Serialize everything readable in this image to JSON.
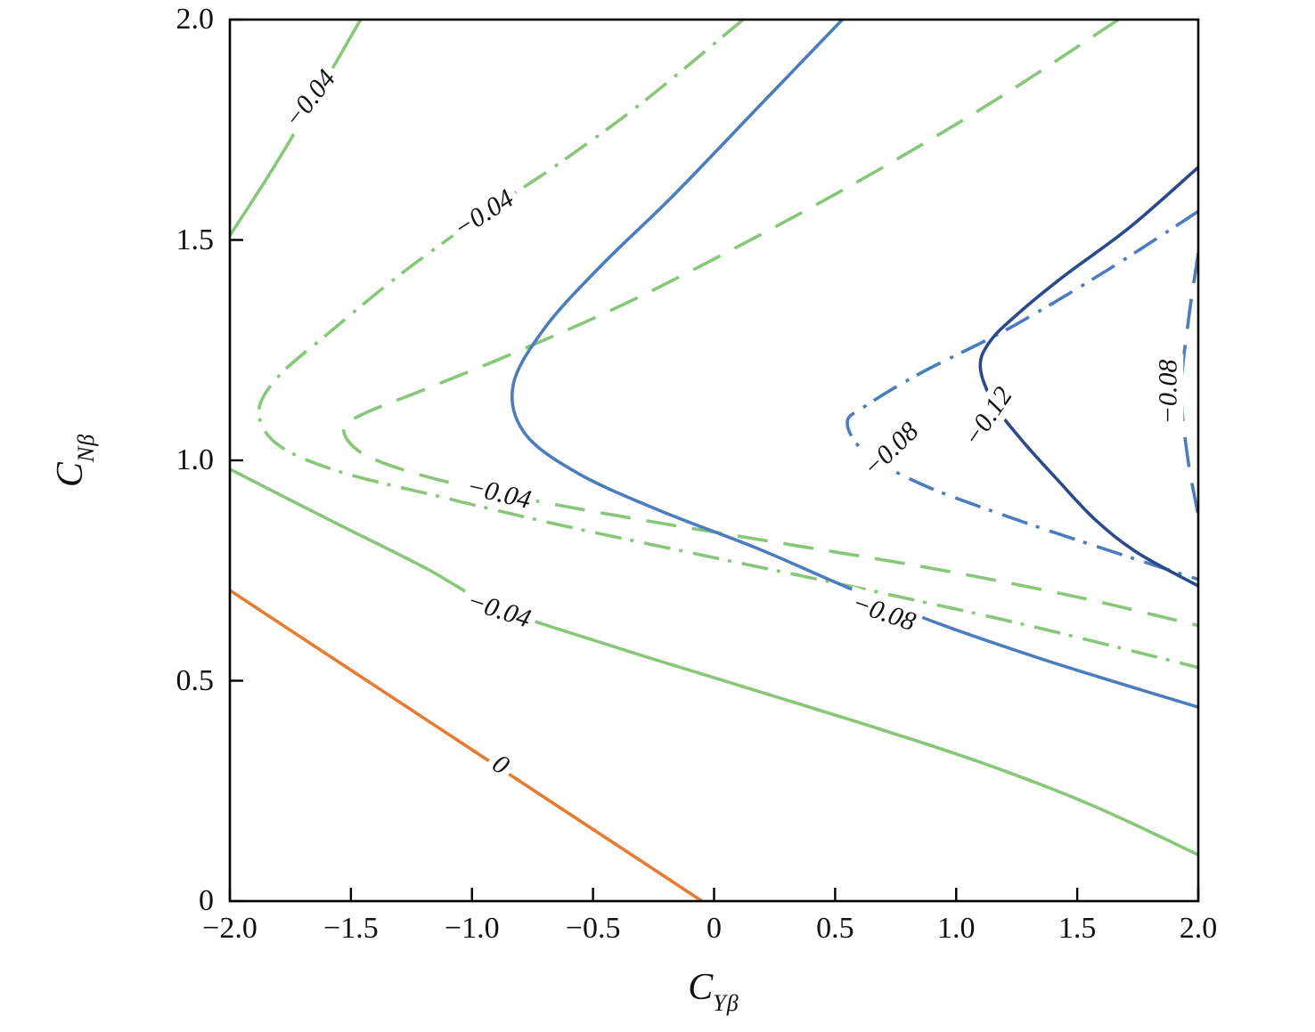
{
  "figure": {
    "background": "#ffffff"
  },
  "axes": {
    "x": {
      "title_main": "C",
      "title_sub": "Yβ",
      "min": -2.0,
      "max": 2.0,
      "ticks": [
        -2.0,
        -1.5,
        -1.0,
        -0.5,
        0,
        0.5,
        1.0,
        1.5,
        2.0
      ],
      "tick_labels": [
        "−2.0",
        "−1.5",
        "−1.0",
        "−0.5",
        "0",
        "0.5",
        "1.0",
        "1.5",
        "2.0"
      ]
    },
    "y": {
      "title_main": "C",
      "title_sub": "Nβ",
      "min": 0,
      "max": 2.0,
      "ticks": [
        0,
        0.5,
        1.0,
        1.5,
        2.0
      ],
      "tick_labels": [
        "0",
        "0.5",
        "1.0",
        "1.5",
        "2.0"
      ]
    }
  },
  "chart_data": {
    "type": "contour",
    "xlabel": "C_Yβ",
    "ylabel": "C_Nβ",
    "xlim": [
      -2.0,
      2.0
    ],
    "ylim": [
      0,
      2.0
    ],
    "grid": false,
    "legend": null,
    "levels": [
      0,
      -0.04,
      -0.08,
      -0.12
    ],
    "level_colors": [
      "#e87b2e",
      "#86c878",
      "#4a7dbf",
      "#2a4a8c"
    ],
    "series": [
      {
        "id": "level-0-solid",
        "level": 0,
        "line_style": "solid",
        "color": "#e87b2e",
        "points": [
          [
            -2.0,
            0.705
          ],
          [
            -1.35,
            0.47
          ],
          [
            -0.7,
            0.235
          ],
          [
            -0.05,
            0.0
          ]
        ]
      },
      {
        "id": "level-004-solid-a",
        "level": -0.04,
        "line_style": "solid",
        "color": "#86c878",
        "points": [
          [
            -2.0,
            1.51
          ],
          [
            -1.83,
            1.655
          ],
          [
            -1.66,
            1.81
          ],
          [
            -1.46,
            2.0
          ]
        ]
      },
      {
        "id": "level-004-solid-b",
        "level": -0.04,
        "line_style": "solid",
        "color": "#86c878",
        "points": [
          [
            -2.0,
            0.98
          ],
          [
            -1.6,
            0.868
          ],
          [
            -1.2,
            0.758
          ],
          [
            -0.89,
            0.665
          ],
          [
            -0.4,
            0.575
          ],
          [
            0.1,
            0.49
          ],
          [
            0.6,
            0.405
          ],
          [
            1.1,
            0.315
          ],
          [
            1.55,
            0.22
          ],
          [
            2.0,
            0.105
          ]
        ]
      },
      {
        "id": "level-004-dashdot",
        "level": -0.04,
        "line_style": "dashdot",
        "color": "#86c878",
        "points": [
          [
            0.12,
            2.0
          ],
          [
            -0.3,
            1.81
          ],
          [
            -0.65,
            1.67
          ],
          [
            -0.95,
            1.56
          ],
          [
            -1.3,
            1.42
          ],
          [
            -1.6,
            1.285
          ],
          [
            -1.8,
            1.19
          ],
          [
            -1.88,
            1.11
          ],
          [
            -1.8,
            1.035
          ],
          [
            -1.55,
            0.975
          ],
          [
            -1.15,
            0.92
          ],
          [
            -0.65,
            0.855
          ],
          [
            -0.05,
            0.785
          ],
          [
            0.6,
            0.71
          ],
          [
            1.3,
            0.625
          ],
          [
            2.0,
            0.53
          ]
        ]
      },
      {
        "id": "level-004-dashed",
        "level": -0.04,
        "line_style": "dashed",
        "color": "#86c878",
        "points": [
          [
            1.67,
            2.0
          ],
          [
            1.17,
            1.82
          ],
          [
            0.65,
            1.65
          ],
          [
            0.15,
            1.5
          ],
          [
            -0.35,
            1.36
          ],
          [
            -0.82,
            1.245
          ],
          [
            -1.2,
            1.16
          ],
          [
            -1.45,
            1.105
          ],
          [
            -1.53,
            1.07
          ],
          [
            -1.45,
            1.015
          ],
          [
            -1.2,
            0.965
          ],
          [
            -0.8,
            0.915
          ],
          [
            -0.3,
            0.865
          ],
          [
            0.3,
            0.81
          ],
          [
            0.9,
            0.755
          ],
          [
            1.5,
            0.69
          ],
          [
            2.0,
            0.625
          ]
        ]
      },
      {
        "id": "level-008-solid",
        "level": -0.08,
        "line_style": "solid",
        "color": "#4a7dbf",
        "points": [
          [
            0.53,
            2.0
          ],
          [
            0.18,
            1.8
          ],
          [
            -0.17,
            1.6
          ],
          [
            -0.47,
            1.44
          ],
          [
            -0.7,
            1.3
          ],
          [
            -0.83,
            1.17
          ],
          [
            -0.78,
            1.06
          ],
          [
            -0.56,
            0.97
          ],
          [
            -0.22,
            0.885
          ],
          [
            0.18,
            0.8
          ],
          [
            0.58,
            0.705
          ],
          [
            0.95,
            0.625
          ],
          [
            1.35,
            0.55
          ],
          [
            1.7,
            0.49
          ],
          [
            2.0,
            0.44
          ]
        ]
      },
      {
        "id": "level-008-dashdot",
        "level": -0.08,
        "line_style": "dashdot",
        "color": "#4a7dbf",
        "points": [
          [
            2.0,
            1.565
          ],
          [
            1.62,
            1.43
          ],
          [
            1.22,
            1.3
          ],
          [
            0.86,
            1.2
          ],
          [
            0.63,
            1.125
          ],
          [
            0.55,
            1.085
          ],
          [
            0.63,
            1.015
          ],
          [
            0.86,
            0.945
          ],
          [
            1.2,
            0.875
          ],
          [
            1.55,
            0.81
          ],
          [
            2.0,
            0.73
          ]
        ]
      },
      {
        "id": "level-008-dashed",
        "level": -0.08,
        "line_style": "dashed",
        "color": "#4a7dbf",
        "points": [
          [
            2.0,
            1.47
          ],
          [
            1.96,
            1.32
          ],
          [
            1.93,
            1.16
          ],
          [
            1.955,
            1.01
          ],
          [
            2.0,
            0.875
          ]
        ]
      },
      {
        "id": "level-012-solid",
        "level": -0.12,
        "line_style": "solid",
        "color": "#2a4a8c",
        "points": [
          [
            2.0,
            1.665
          ],
          [
            1.72,
            1.53
          ],
          [
            1.45,
            1.42
          ],
          [
            1.26,
            1.335
          ],
          [
            1.14,
            1.27
          ],
          [
            1.1,
            1.21
          ],
          [
            1.16,
            1.125
          ],
          [
            1.28,
            1.04
          ],
          [
            1.42,
            0.955
          ],
          [
            1.575,
            0.865
          ],
          [
            1.75,
            0.79
          ],
          [
            2.0,
            0.715
          ]
        ]
      }
    ],
    "labels": [
      {
        "text": "−0.04",
        "x": -1.67,
        "y": 1.82,
        "rotation": -52
      },
      {
        "text": "−0.04",
        "x": -0.95,
        "y": 1.56,
        "rotation": -33
      },
      {
        "text": "−0.04",
        "x": -0.89,
        "y": 0.925,
        "rotation": 13
      },
      {
        "text": "−0.04",
        "x": -0.89,
        "y": 0.66,
        "rotation": 18
      },
      {
        "text": "0",
        "x": -0.88,
        "y": 0.31,
        "rotation": 33
      },
      {
        "text": "−0.08",
        "x": 0.7,
        "y": 0.655,
        "rotation": 19
      },
      {
        "text": "−0.08",
        "x": 0.73,
        "y": 1.025,
        "rotation": -44
      },
      {
        "text": "−0.12",
        "x": 1.13,
        "y": 1.1,
        "rotation": -56
      },
      {
        "text": "−0.08",
        "x": 1.875,
        "y": 1.155,
        "rotation": -90
      }
    ]
  }
}
